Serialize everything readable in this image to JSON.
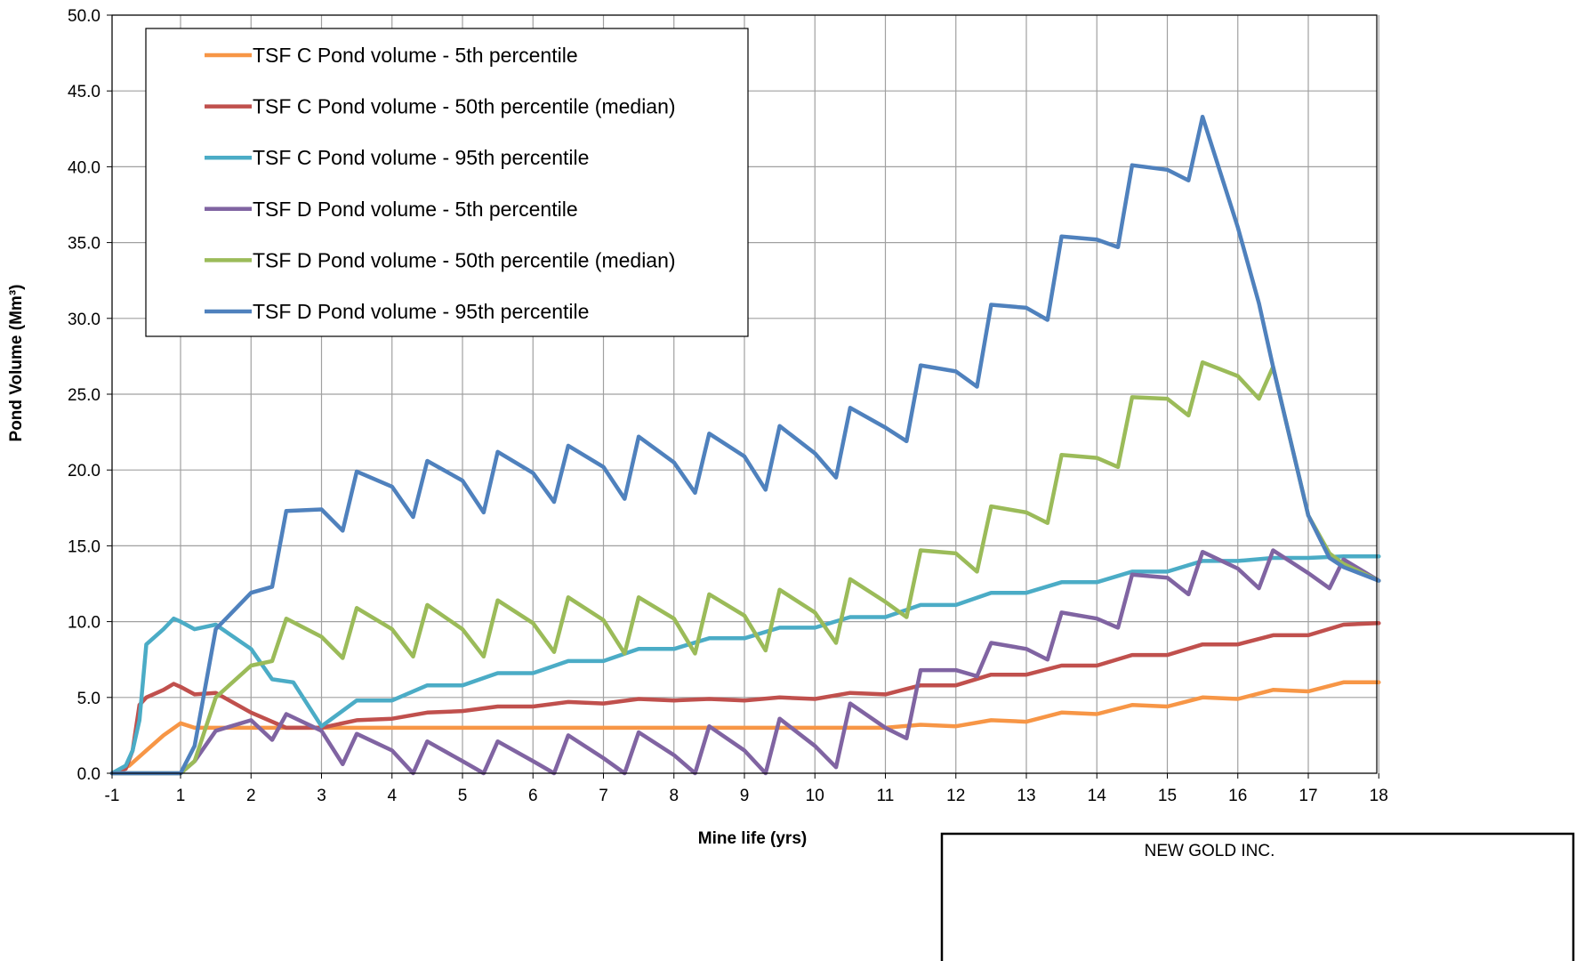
{
  "chart_data": {
    "type": "line",
    "xlabel": "Mine life (yrs)",
    "ylabel": "Pond Volume (Mm³)",
    "xlim": [
      -1,
      18
    ],
    "ylim": [
      0,
      50
    ],
    "x_ticks": [
      "-1",
      "1",
      "2",
      "3",
      "4",
      "5",
      "6",
      "7",
      "8",
      "9",
      "10",
      "11",
      "12",
      "13",
      "14",
      "15",
      "16",
      "17",
      "18"
    ],
    "y_ticks": [
      "0.0",
      "5.0",
      "10.0",
      "15.0",
      "20.0",
      "25.0",
      "30.0",
      "35.0",
      "40.0",
      "45.0",
      "50.0"
    ],
    "grid": true,
    "legend_position": "top-left",
    "series": [
      {
        "name": "TSF C Pond volume - 5th percentile",
        "color": "#F79646",
        "x": [
          -1,
          -0.5,
          0,
          0.5,
          1,
          1.2,
          1.5,
          3,
          4,
          5,
          6,
          7,
          8,
          9,
          10,
          10.5,
          11,
          11.5,
          12,
          12.5,
          13,
          13.5,
          14,
          14.5,
          15,
          15.5,
          16,
          16.5,
          17,
          17.5,
          18
        ],
        "y": [
          0,
          0.5,
          1.5,
          2.5,
          3.3,
          3.0,
          3.0,
          3.0,
          3.0,
          3.0,
          3.0,
          3.0,
          3.0,
          3.0,
          3.0,
          3.0,
          3.0,
          3.2,
          3.1,
          3.5,
          3.4,
          4.0,
          3.9,
          4.5,
          4.4,
          5.0,
          4.9,
          5.5,
          5.4,
          6.0,
          6.0
        ]
      },
      {
        "name": "TSF C Pond volume - 50th percentile (median)",
        "color": "#C0504D",
        "x": [
          -1,
          -0.6,
          -0.4,
          -0.2,
          0,
          0.5,
          0.8,
          1,
          1.2,
          1.5,
          2,
          2.5,
          3,
          3.5,
          4,
          4.5,
          5,
          5.5,
          6,
          6.5,
          7,
          7.5,
          8,
          8.5,
          9,
          9.5,
          10,
          10.5,
          11,
          11.5,
          12,
          12.5,
          13,
          13.5,
          14,
          14.5,
          15,
          15.5,
          16,
          16.5,
          17,
          17.5,
          18
        ],
        "y": [
          0,
          0.3,
          1.5,
          4.5,
          5.0,
          5.5,
          5.9,
          5.7,
          5.2,
          5.3,
          4.0,
          3.0,
          3.0,
          3.5,
          3.6,
          4.0,
          4.1,
          4.4,
          4.4,
          4.7,
          4.6,
          4.9,
          4.8,
          4.9,
          4.8,
          5.0,
          4.9,
          5.3,
          5.2,
          5.8,
          5.8,
          6.5,
          6.5,
          7.1,
          7.1,
          7.8,
          7.8,
          8.5,
          8.5,
          9.1,
          9.1,
          9.8,
          9.9
        ]
      },
      {
        "name": "TSF C Pond volume - 95th percentile",
        "color": "#4BACC6",
        "x": [
          -1,
          -0.6,
          -0.4,
          -0.2,
          0,
          0.5,
          0.8,
          1,
          1.2,
          1.5,
          2,
          2.3,
          2.6,
          3,
          3.5,
          4,
          4.5,
          5,
          5.5,
          6,
          6.5,
          7,
          7.5,
          8,
          8.5,
          9,
          9.5,
          10,
          10.5,
          11,
          11.5,
          12,
          12.5,
          13,
          13.5,
          14,
          14.5,
          15,
          15.5,
          16,
          16.5,
          17,
          17.5,
          18
        ],
        "y": [
          0,
          0.5,
          1.5,
          3.5,
          8.5,
          9.5,
          10.2,
          10.0,
          9.5,
          9.8,
          8.2,
          6.2,
          6.0,
          3.1,
          4.8,
          4.8,
          5.8,
          5.8,
          6.6,
          6.6,
          7.4,
          7.4,
          8.2,
          8.2,
          8.9,
          8.9,
          9.6,
          9.6,
          10.3,
          10.3,
          11.1,
          11.1,
          11.9,
          11.9,
          12.6,
          12.6,
          13.3,
          13.3,
          14.0,
          14.0,
          14.2,
          14.2,
          14.3,
          14.3
        ]
      },
      {
        "name": "TSF D Pond volume - 5th percentile",
        "color": "#8064A2",
        "x": [
          -1,
          -0.5,
          0,
          0.5,
          1,
          1.2,
          1.5,
          2,
          2.3,
          2.5,
          3,
          3.3,
          3.5,
          4,
          4.3,
          4.5,
          5,
          5.3,
          5.5,
          6,
          6.3,
          6.5,
          7,
          7.3,
          7.5,
          8,
          8.3,
          8.5,
          9,
          9.3,
          9.5,
          10,
          10.3,
          10.5,
          11,
          11.3,
          11.5,
          12,
          12.3,
          12.5,
          13,
          13.3,
          13.5,
          14,
          14.3,
          14.5,
          15,
          15.3,
          15.5,
          16,
          16.3,
          16.5,
          17,
          17.3,
          17.5,
          18
        ],
        "y": [
          0,
          0,
          0,
          0,
          0,
          0.8,
          2.8,
          3.5,
          2.2,
          3.9,
          2.8,
          0.6,
          2.6,
          1.5,
          0,
          2.1,
          0.8,
          0,
          2.1,
          0.8,
          0,
          2.5,
          1.0,
          0,
          2.7,
          1.2,
          0,
          3.1,
          1.5,
          0,
          3.6,
          1.8,
          0.4,
          4.6,
          3.0,
          2.3,
          6.8,
          6.8,
          6.4,
          8.6,
          8.2,
          7.5,
          10.6,
          10.2,
          9.6,
          13.1,
          12.9,
          11.8,
          14.6,
          13.5,
          12.2,
          14.7,
          13.2,
          12.2,
          14.1,
          12.7
        ]
      },
      {
        "name": "TSF D Pond volume - 50th percentile (median)",
        "color": "#9BBB59",
        "x": [
          -1,
          -0.5,
          0,
          0.5,
          1,
          1.2,
          1.5,
          2,
          2.3,
          2.5,
          3,
          3.3,
          3.5,
          4,
          4.3,
          4.5,
          5,
          5.3,
          5.5,
          6,
          6.3,
          6.5,
          7,
          7.3,
          7.5,
          8,
          8.3,
          8.5,
          9,
          9.3,
          9.5,
          10,
          10.3,
          10.5,
          11,
          11.3,
          11.5,
          12,
          12.3,
          12.5,
          13,
          13.3,
          13.5,
          14,
          14.3,
          14.5,
          15,
          15.3,
          15.5,
          16,
          16.3,
          16.5,
          17,
          17.3,
          17.5,
          18
        ],
        "y": [
          0,
          0,
          0,
          0,
          0,
          0.8,
          5.0,
          7.1,
          7.4,
          10.2,
          9.0,
          7.6,
          10.9,
          9.5,
          7.7,
          11.1,
          9.5,
          7.7,
          11.4,
          9.9,
          8.0,
          11.6,
          10.1,
          7.9,
          11.6,
          10.2,
          7.9,
          11.8,
          10.4,
          8.1,
          12.1,
          10.6,
          8.6,
          12.8,
          11.3,
          10.3,
          14.7,
          14.5,
          13.3,
          17.6,
          17.2,
          16.5,
          21.0,
          20.8,
          20.2,
          24.8,
          24.7,
          23.6,
          27.1,
          26.2,
          24.7,
          26.8,
          17.0,
          14.5,
          13.8,
          12.7
        ]
      },
      {
        "name": "TSF D Pond volume - 95th percentile",
        "color": "#4F81BD",
        "x": [
          -1,
          -0.5,
          0,
          0.5,
          1,
          1.2,
          1.5,
          2,
          2.3,
          2.5,
          3,
          3.3,
          3.5,
          4,
          4.3,
          4.5,
          5,
          5.3,
          5.5,
          6,
          6.3,
          6.5,
          7,
          7.3,
          7.5,
          8,
          8.3,
          8.5,
          9,
          9.3,
          9.5,
          10,
          10.3,
          10.5,
          11,
          11.3,
          11.5,
          12,
          12.3,
          12.5,
          13,
          13.3,
          13.5,
          14,
          14.3,
          14.5,
          15,
          15.3,
          15.5,
          16,
          16.3,
          16.5,
          17,
          17.3,
          17.5,
          18
        ],
        "y": [
          0,
          0,
          0,
          0,
          0,
          1.8,
          9.5,
          11.9,
          12.3,
          17.3,
          17.4,
          16.0,
          19.9,
          18.9,
          16.9,
          20.6,
          19.3,
          17.2,
          21.2,
          19.8,
          17.9,
          21.6,
          20.2,
          18.1,
          22.2,
          20.5,
          18.5,
          22.4,
          20.9,
          18.7,
          22.9,
          21.1,
          19.5,
          24.1,
          22.8,
          21.9,
          26.9,
          26.5,
          25.5,
          30.9,
          30.7,
          29.9,
          35.4,
          35.2,
          34.7,
          40.1,
          39.8,
          39.1,
          43.3,
          36.0,
          31.0,
          26.8,
          17.0,
          14.2,
          13.6,
          12.7
        ]
      }
    ]
  },
  "company_box": {
    "line1": "NEW GOLD INC."
  }
}
